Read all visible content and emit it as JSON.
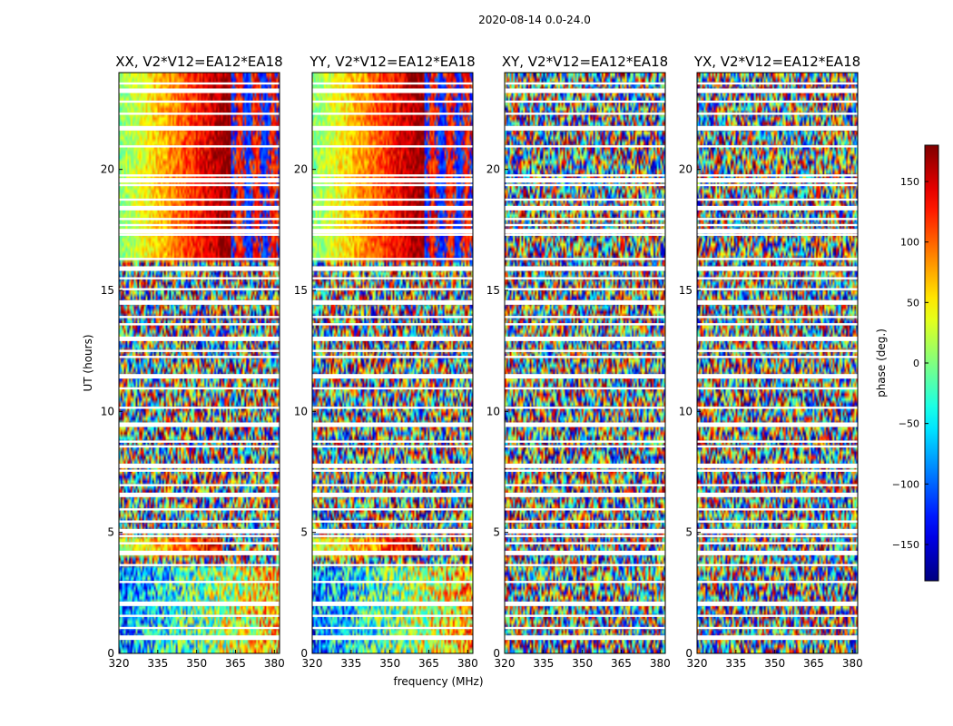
{
  "figure": {
    "suptitle": "2020-08-14 0.0-24.0",
    "xlabel": "frequency (MHz)",
    "ylabel": "UT (hours)"
  },
  "chart_data": {
    "type": "heatmap",
    "title": "2020-08-14 0.0-24.0",
    "xlabel": "frequency (MHz)",
    "ylabel": "UT (hours)",
    "xlim": [
      320,
      382
    ],
    "ylim": [
      0,
      24
    ],
    "x_ticks": [
      "320",
      "335",
      "350",
      "365",
      "380"
    ],
    "y_ticks": [
      "0",
      "5",
      "10",
      "15",
      "20"
    ],
    "colormap": "jet",
    "panels": [
      {
        "title": "XX, V2*V12=EA12*EA18",
        "coherent_phase": true
      },
      {
        "title": "YY, V2*V12=EA12*EA18",
        "coherent_phase": true
      },
      {
        "title": "XY, V2*V12=EA12*EA18",
        "coherent_phase": false
      },
      {
        "title": "YX, V2*V12=EA12*EA18",
        "coherent_phase": false
      }
    ],
    "flagged_hours": [
      0.65,
      1.05,
      1.55,
      2.05,
      2.95,
      3.65,
      4.15,
      4.55,
      4.85,
      5.05,
      5.45,
      5.95,
      6.55,
      6.95,
      7.55,
      7.75,
      8.55,
      8.75,
      9.45,
      10.15,
      10.95,
      11.45,
      12.25,
      12.5,
      13.0,
      13.6,
      13.9,
      14.5,
      15.05,
      15.5,
      15.9,
      16.3,
      17.3,
      17.45,
      17.7,
      17.95,
      18.4,
      18.75,
      19.35,
      19.55,
      19.75,
      20.95,
      21.7,
      22.3,
      22.8,
      23.25,
      23.55
    ],
    "colorbar": {
      "label": "phase (deg.)",
      "range": [
        -180,
        180
      ],
      "ticks": [
        "150",
        "100",
        "50",
        "0",
        "−50",
        "−100",
        "−150"
      ],
      "tick_values": [
        150,
        100,
        50,
        0,
        -50,
        -100,
        -150
      ]
    }
  }
}
